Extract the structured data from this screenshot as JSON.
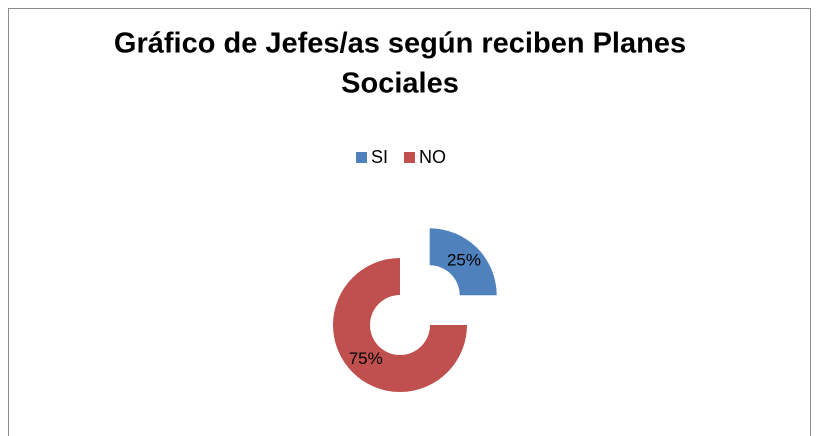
{
  "chart_data": {
    "type": "doughnut",
    "title_lines": [
      "Gráfico de Jefes/as según reciben Planes",
      "Sociales"
    ],
    "categories": [
      "SI",
      "NO"
    ],
    "values": [
      25,
      75
    ],
    "value_labels": [
      "25%",
      "75%"
    ],
    "colors": [
      "#4f81bd",
      "#c0504d"
    ],
    "legend": "top"
  }
}
